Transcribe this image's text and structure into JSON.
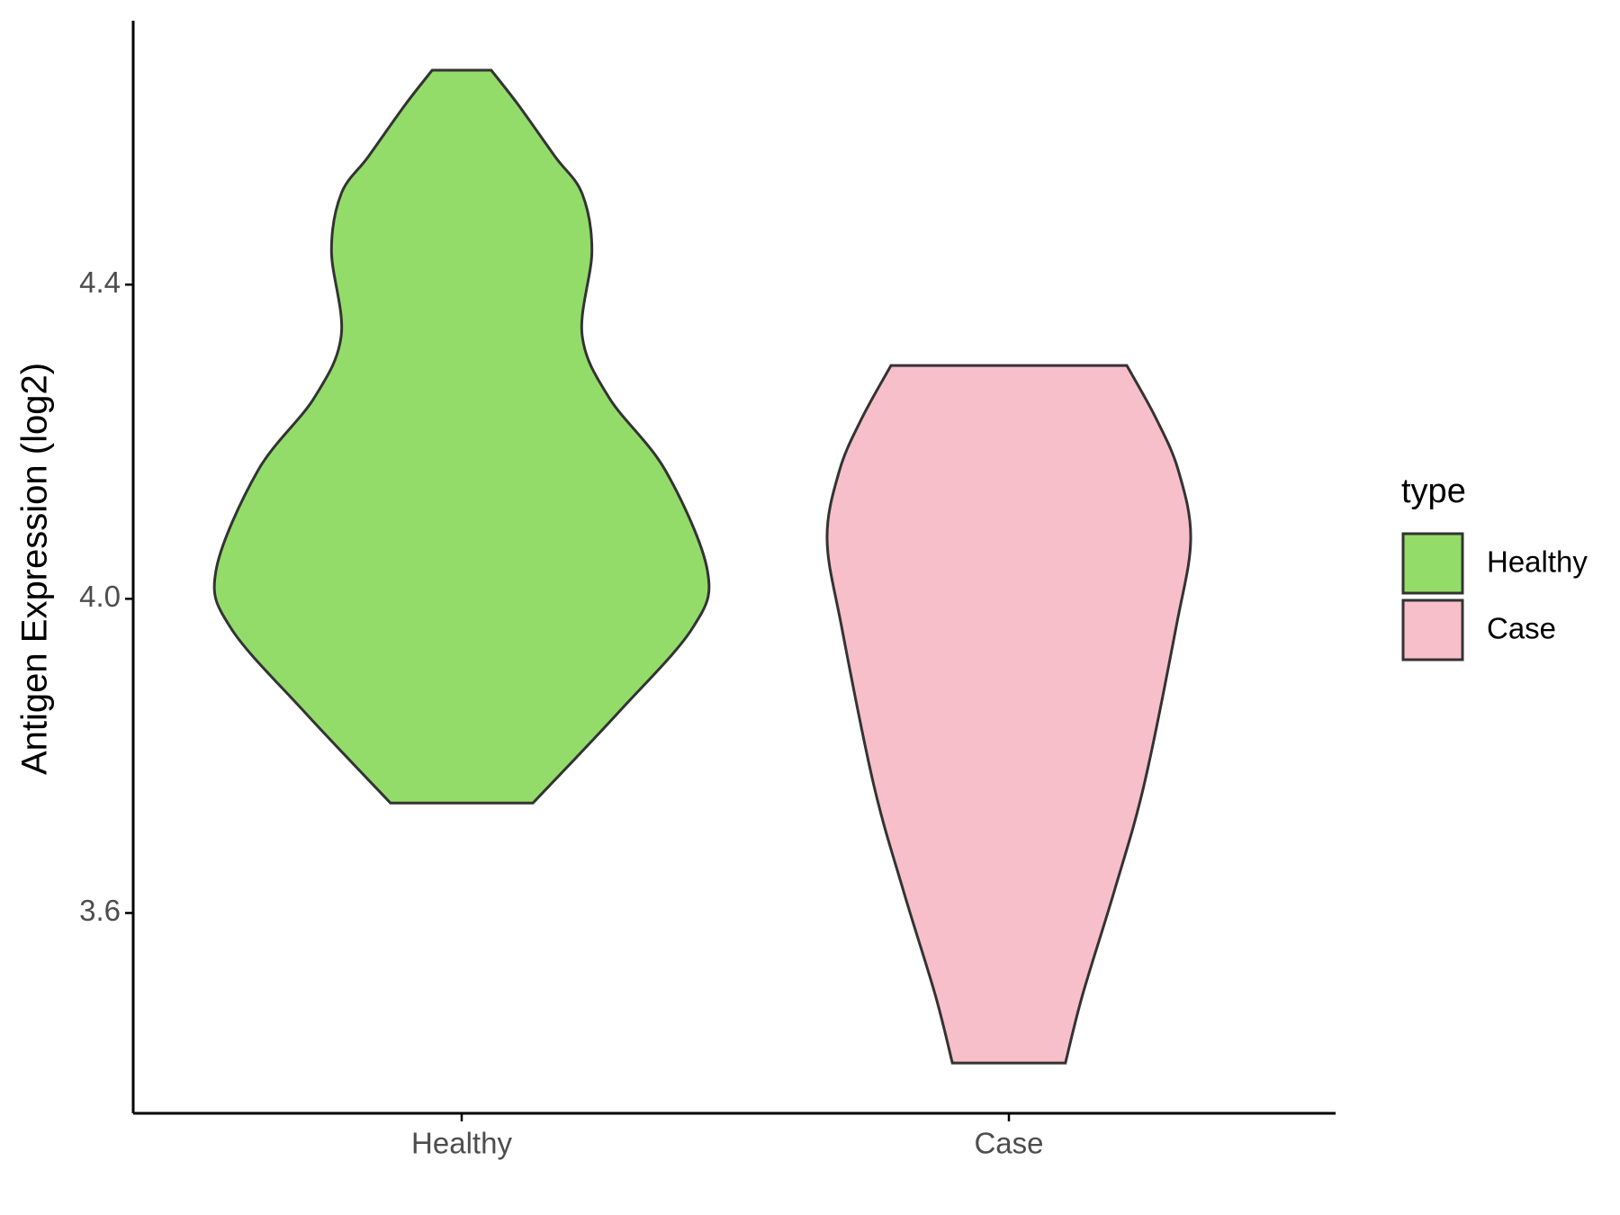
{
  "chart_data": {
    "type": "violin",
    "ylabel": "Antigen Expression (log2)",
    "categories": [
      "Healthy",
      "Case"
    ],
    "legend_title": "type",
    "series": [
      {
        "name": "Healthy",
        "color": "#93dc6a",
        "y": [
          4.673,
          4.629,
          4.563,
          4.516,
          4.443,
          4.336,
          4.256,
          4.163,
          4.036,
          3.963,
          3.856,
          3.74
        ],
        "density": [
          0.12,
          0.23,
          0.38,
          0.49,
          0.53,
          0.49,
          0.6,
          0.83,
          1.0,
          0.94,
          0.64,
          0.29
        ]
      },
      {
        "name": "Case",
        "color": "#f7bfca",
        "y": [
          4.297,
          4.229,
          4.163,
          4.076,
          3.963,
          3.763,
          3.629,
          3.496,
          3.409
        ],
        "density": [
          0.48,
          0.6,
          0.69,
          0.74,
          0.68,
          0.55,
          0.43,
          0.3,
          0.23
        ]
      }
    ],
    "ylim": [
      3.345,
      4.736
    ],
    "yticks": [
      {
        "value": 3.6,
        "label": "3.6"
      },
      {
        "value": 4.0,
        "label": "4.0"
      },
      {
        "value": 4.4,
        "label": "4.4"
      }
    ]
  }
}
